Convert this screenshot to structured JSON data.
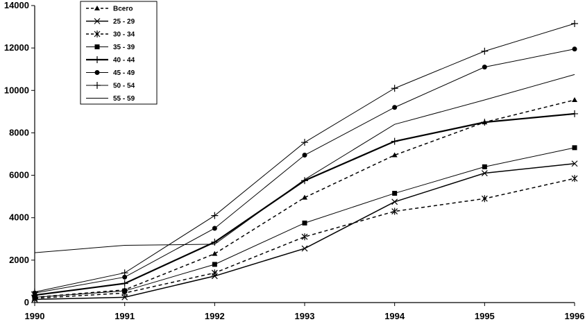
{
  "chart_data": {
    "type": "line",
    "x": [
      "1990",
      "1991",
      "1992",
      "1993",
      "1994",
      "1995",
      "1996"
    ],
    "ylim": [
      0,
      14000
    ],
    "yticks": [
      "0",
      "2000",
      "4000",
      "6000",
      "8000",
      "10000",
      "12000",
      "14000"
    ],
    "grid": false,
    "legend_position": "top-left",
    "series": [
      {
        "name": "Всего",
        "values": [
          250,
          600,
          2300,
          4950,
          6950,
          8500,
          9550
        ],
        "style": "dashed",
        "marker": "triangle",
        "width": 1.5
      },
      {
        "name": "25 - 29",
        "values": [
          150,
          250,
          1250,
          2550,
          4750,
          6100,
          6550
        ],
        "style": "solid",
        "marker": "x",
        "width": 1.5
      },
      {
        "name": "30 - 34",
        "values": [
          200,
          450,
          1400,
          3100,
          4300,
          4900,
          5850
        ],
        "style": "dashed",
        "marker": "asterisk",
        "width": 1.5
      },
      {
        "name": "35 - 39",
        "values": [
          250,
          550,
          1800,
          3750,
          5150,
          6400,
          7300
        ],
        "style": "solid",
        "marker": "square",
        "width": 1
      },
      {
        "name": "40 - 44",
        "values": [
          350,
          900,
          2850,
          5750,
          7600,
          8500,
          8900
        ],
        "style": "solid",
        "marker": "plus",
        "width": 2.2
      },
      {
        "name": "45 - 49",
        "values": [
          450,
          1200,
          3500,
          6950,
          9200,
          11100,
          11950
        ],
        "style": "solid",
        "marker": "diamond",
        "width": 1
      },
      {
        "name": "50 - 54",
        "values": [
          500,
          1400,
          4100,
          7550,
          10100,
          11850,
          13150
        ],
        "style": "solid",
        "marker": "plus",
        "width": 1
      },
      {
        "name": "55 - 59",
        "values": [
          2350,
          2700,
          2750,
          5800,
          8400,
          9550,
          10750
        ],
        "style": "solid",
        "marker": "none",
        "width": 1
      }
    ]
  }
}
